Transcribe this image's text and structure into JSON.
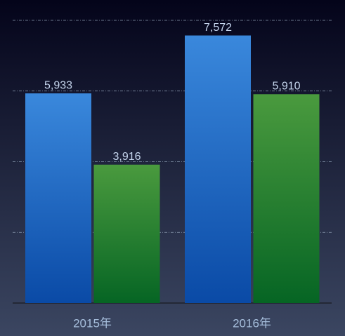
{
  "chart_data": {
    "type": "bar",
    "categories": [
      "2015年",
      "2016年"
    ],
    "series": [
      {
        "color": "#3a88dc",
        "color_end": "#0a4aa6",
        "values": [
          5933,
          7572
        ],
        "value_labels": [
          "5,933",
          "7,572"
        ]
      },
      {
        "color": "#4a9a3e",
        "color_end": "#066524",
        "values": [
          3916,
          5910
        ],
        "value_labels": [
          "3,916",
          "5,910"
        ]
      }
    ],
    "ylim": [
      0,
      8000
    ],
    "yticks": [
      0,
      2000,
      4000,
      6000,
      8000
    ],
    "grid": true
  }
}
